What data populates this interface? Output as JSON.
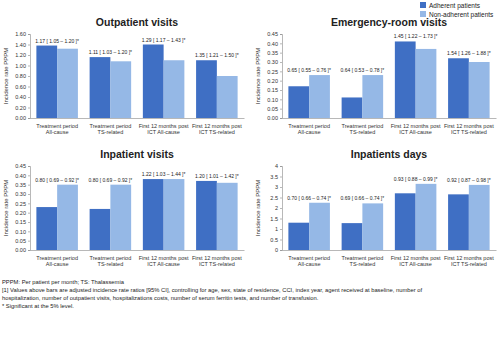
{
  "chart_data": [
    {
      "type": "bar",
      "title": "Outpatient visits",
      "y_label": "Incidence rate PPPM",
      "categories": [
        "Treatment period All-cause",
        "Treatment period TS-related",
        "First 12 months post ICT All-cause",
        "First 12 months post ICT TS-related"
      ],
      "series": [
        {
          "color": "#3f6fc4",
          "values": [
            1.38,
            1.16,
            1.4,
            1.1
          ]
        },
        {
          "color": "#95b8e6",
          "values": [
            1.32,
            1.08,
            1.1,
            0.8
          ]
        }
      ],
      "annotations": [
        "1.17 [ 1.05 – 1.20 ]*",
        "1.11 [ 1.03 – 1.20 ]*",
        "1.29 [ 1.17 – 1.43 ]*",
        "1.35 [ 1.21 – 1.50 ]*"
      ],
      "ylim": [
        0,
        1.6
      ],
      "yticks": [
        {
          "value": 0,
          "label": "0.00"
        },
        {
          "value": 0.2,
          "label": "0.20"
        },
        {
          "value": 0.4,
          "label": "0.40"
        },
        {
          "value": 0.6,
          "label": "0.60"
        },
        {
          "value": 0.8,
          "label": "0.80"
        },
        {
          "value": 1.0,
          "label": "1.00"
        },
        {
          "value": 1.2,
          "label": "1.20"
        },
        {
          "value": 1.4,
          "label": "1.40"
        },
        {
          "value": 1.6,
          "label": "1.60"
        }
      ],
      "grid": false
    },
    {
      "type": "bar",
      "title": "Emergency-room visits",
      "y_label": "Incidence rate PPPM",
      "categories": [
        "Treatment period All-cause",
        "Treatment period TS-related",
        "First 12 months post ICT All-cause",
        "First 12 months post ICT TS-related"
      ],
      "series": [
        {
          "name": "Adherent patients",
          "color": "#3f6fc4",
          "values": [
            0.17,
            0.11,
            0.41,
            0.32
          ]
        },
        {
          "name": "Non-adherent patients",
          "color": "#95b8e6",
          "values": [
            0.23,
            0.23,
            0.37,
            0.3
          ]
        }
      ],
      "annotations": [
        "0.65 [ 0.55 – 0.76 ]*",
        "0.64 [ 0.53 – 0.78 ]*",
        "1.45 [ 1.22 – 1.73 ]*",
        "1.54 [ 1.26 – 1.88 ]*"
      ],
      "ylim": [
        0,
        0.45
      ],
      "yticks": [
        {
          "value": 0,
          "label": "0.00"
        },
        {
          "value": 0.05,
          "label": "0.05"
        },
        {
          "value": 0.1,
          "label": "0.10"
        },
        {
          "value": 0.15,
          "label": "0.15"
        },
        {
          "value": 0.2,
          "label": "0.20"
        },
        {
          "value": 0.25,
          "label": "0.25"
        },
        {
          "value": 0.3,
          "label": "0.30"
        },
        {
          "value": 0.35,
          "label": "0.35"
        },
        {
          "value": 0.4,
          "label": "0.40"
        },
        {
          "value": 0.45,
          "label": "0.45"
        }
      ],
      "grid": false,
      "legend": "top-right"
    },
    {
      "type": "bar",
      "title": "Inpatient visits",
      "y_label": "Incidence rate PPPM",
      "categories": [
        "Treatment period All-cause",
        "Treatment period TS-related",
        "First 12 months post ICT All-cause",
        "First 12 months post ICT TS-related"
      ],
      "series": [
        {
          "color": "#3f6fc4",
          "values": [
            0.23,
            0.22,
            0.38,
            0.37
          ]
        },
        {
          "color": "#95b8e6",
          "values": [
            0.35,
            0.35,
            0.38,
            0.36
          ]
        }
      ],
      "annotations": [
        "0.80 [ 0.69 – 0.92 ]*",
        "0.80 [ 0.69 – 0.92 ]*",
        "1.22 [ 1.03 – 1.44 ]*",
        "1.20 [ 1.01 – 1.42 ]*"
      ],
      "ylim": [
        0,
        0.45
      ],
      "yticks": [
        {
          "value": 0,
          "label": "0.00"
        },
        {
          "value": 0.05,
          "label": "0.05"
        },
        {
          "value": 0.1,
          "label": "0.10"
        },
        {
          "value": 0.15,
          "label": "0.15"
        },
        {
          "value": 0.2,
          "label": "0.20"
        },
        {
          "value": 0.25,
          "label": "0.25"
        },
        {
          "value": 0.3,
          "label": "0.30"
        },
        {
          "value": 0.35,
          "label": "0.35"
        },
        {
          "value": 0.4,
          "label": "0.40"
        },
        {
          "value": 0.45,
          "label": "0.45"
        }
      ],
      "grid": false
    },
    {
      "type": "bar",
      "title": "Inpatients days",
      "y_label": "Incidence rate PPPM",
      "categories": [
        "Treatment period All-cause",
        "Treatment period TS-related",
        "First 12 months post ICT All-cause",
        "First 12 months post ICT TS-related"
      ],
      "series": [
        {
          "color": "#3f6fc4",
          "values": [
            1.3,
            1.28,
            2.7,
            2.65
          ]
        },
        {
          "color": "#95b8e6",
          "values": [
            2.25,
            2.22,
            3.15,
            3.1
          ]
        }
      ],
      "annotations": [
        "0.70 [ 0.66 – 0.74 ]*",
        "0.69 [ 0.66 – 0.74 ]*",
        "0.93 [ 0.88 – 0.99 ]*",
        "0.92 [ 0.87 – 0.98 ]*"
      ],
      "ylim": [
        0,
        4
      ],
      "yticks": [
        0,
        0.5,
        1,
        1.5,
        2,
        2.5,
        3,
        3.5,
        4
      ],
      "grid": false
    }
  ],
  "notes": [
    "PPPM: Per patient per month; TS: Thalassemia",
    "[1] Values above bars are adjusted incidence rate ratios [95% CI], controlling for age, sex, state of residence, CCI, index year, agent received at baseline, number of",
    "hospitalization, number of outpatient visits, hospitalizations costs, number of serum ferritin tests, and number of transfusion.",
    "* Significant at the 5% level."
  ]
}
